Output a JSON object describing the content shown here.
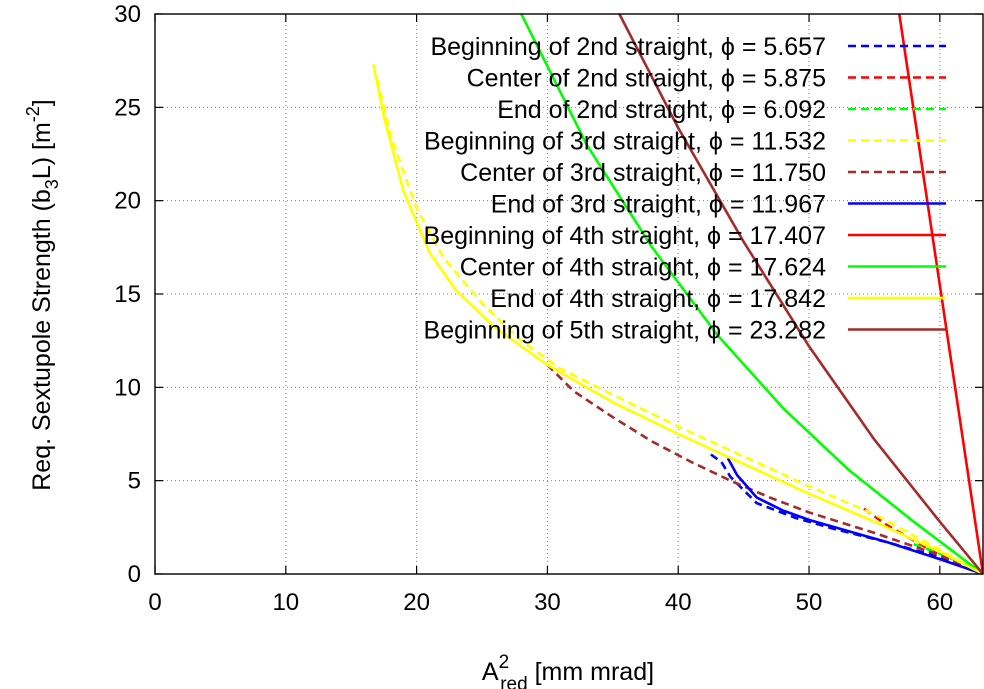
{
  "chart_data": {
    "type": "line",
    "xlim": [
      0,
      63.3
    ],
    "ylim": [
      0,
      30
    ],
    "x_ticks": [
      "0",
      "10",
      "20",
      "30",
      "40",
      "50",
      "60"
    ],
    "y_ticks": [
      "0",
      "5",
      "10",
      "15",
      "20",
      "25",
      "30"
    ],
    "xlabel": {
      "base": "A",
      "sup": "2",
      "sub": "red",
      "rest": " [mm mrad]"
    },
    "ylabel": {
      "pre": "Req. Sextupole Strength (b",
      "sub": "3",
      "mid": "L) [m",
      "sup": "-2",
      "post": "]"
    },
    "grid": "dotted",
    "legend_position": "top-right",
    "series": [
      {
        "name": "Beginning of 2nd straight, ϕ = 5.657",
        "color": "#0000ff",
        "dash": true,
        "x": [
          42.5,
          43.3,
          44.0,
          46.0,
          49.0,
          52.0,
          56.0,
          60.0,
          63.3
        ],
        "y": [
          6.4,
          6.0,
          5.2,
          3.8,
          3.0,
          2.4,
          1.7,
          0.9,
          0.0
        ]
      },
      {
        "name": "Center of 2nd straight, ϕ = 5.875",
        "color": "#ff0000",
        "dash": true,
        "x": [
          54.2,
          56.0,
          58.0,
          60.0,
          62.0,
          63.3
        ],
        "y": [
          3.5,
          2.6,
          1.8,
          1.0,
          0.4,
          0.0
        ]
      },
      {
        "name": "End of 2nd straight, ϕ = 6.092",
        "color": "#00ff00",
        "dash": true,
        "x": [
          58.0,
          60.0,
          62.0,
          63.3
        ],
        "y": [
          1.6,
          1.1,
          0.5,
          0.0
        ]
      },
      {
        "name": "Beginning of 3rd straight, ϕ = 11.532",
        "color": "#ffff00",
        "dash": true,
        "x": [
          17.0,
          18.0,
          20.0,
          22.0,
          25.0,
          28.0,
          31.0,
          35.0,
          40.0,
          45.0,
          50.0,
          55.0,
          60.0,
          63.3
        ],
        "y": [
          26.5,
          23.5,
          19.6,
          17.0,
          14.5,
          12.5,
          11.0,
          9.6,
          7.9,
          6.3,
          4.7,
          3.2,
          1.3,
          0.0
        ]
      },
      {
        "name": "Center of 3rd straight, ϕ = 11.750",
        "color": "#a52a2a",
        "dash": true,
        "x": [
          30.0,
          32.0,
          35.0,
          38.0,
          41.0,
          44.0,
          47.0,
          50.0,
          55.0,
          60.0,
          63.3
        ],
        "y": [
          11.2,
          9.8,
          8.4,
          7.1,
          6.0,
          5.0,
          4.1,
          3.3,
          2.2,
          1.0,
          0.0
        ]
      },
      {
        "name": "End of 3rd straight, ϕ = 11.967",
        "color": "#0000ff",
        "dash": false,
        "x": [
          43.8,
          44.5,
          46.0,
          48.0,
          50.0,
          53.0,
          56.0,
          60.0,
          63.3
        ],
        "y": [
          6.2,
          5.3,
          4.1,
          3.4,
          2.9,
          2.3,
          1.7,
          0.8,
          0.0
        ]
      },
      {
        "name": "Beginning of 4th straight, ϕ = 17.407",
        "color": "#ff0000",
        "dash": false,
        "x": [
          56.9,
          63.3
        ],
        "y": [
          30.0,
          0.0
        ]
      },
      {
        "name": "Center of 4th straight, ϕ = 17.624",
        "color": "#00ff00",
        "dash": false,
        "x": [
          28.0,
          33.0,
          38.0,
          43.0,
          48.0,
          53.0,
          58.0,
          63.3
        ],
        "y": [
          30.0,
          23.0,
          17.5,
          12.8,
          8.9,
          5.6,
          2.8,
          0.0
        ]
      },
      {
        "name": "End of 4th straight, ϕ = 17.842",
        "color": "#ffff00",
        "dash": false,
        "x": [
          16.7,
          17.5,
          19.0,
          21.0,
          23.0,
          26.0,
          30.0,
          35.0,
          40.0,
          45.0,
          50.0,
          55.0,
          60.0,
          63.3
        ],
        "y": [
          27.3,
          24.5,
          20.5,
          17.2,
          15.2,
          13.2,
          11.2,
          9.2,
          7.5,
          5.9,
          4.3,
          2.8,
          1.2,
          0.0
        ]
      },
      {
        "name": "Beginning of 5th straight, ϕ = 23.282",
        "color": "#a52a2a",
        "dash": false,
        "x": [
          35.5,
          40.0,
          45.0,
          50.0,
          55.0,
          60.0,
          63.3
        ],
        "y": [
          30.0,
          23.9,
          17.8,
          12.2,
          7.2,
          2.8,
          0.0
        ]
      }
    ]
  }
}
